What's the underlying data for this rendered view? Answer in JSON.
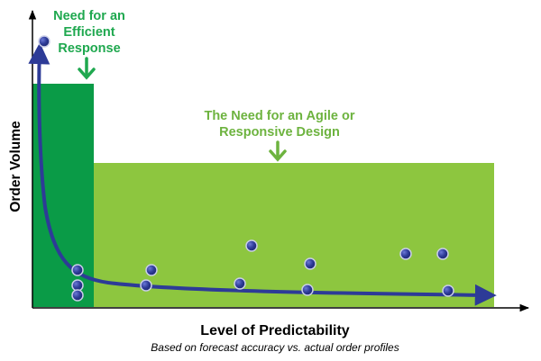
{
  "diagram": {
    "callout_efficient": {
      "lines": [
        "Need for an",
        "Efficient",
        "Response"
      ],
      "color": "#1fa84f"
    },
    "callout_agile": {
      "lines": [
        "The Need for an Agile or",
        "Responsive Design"
      ],
      "color": "#6db33f"
    },
    "axis": {
      "y_label": "Order Volume",
      "x_label": "Level of Predictability",
      "x_caption": "Based on forecast accuracy vs. actual order profiles"
    },
    "colors": {
      "efficient_region": "#0a9b47",
      "agile_region": "#8dc63f",
      "curve": "#2d3b97",
      "dot": "#2d3b97"
    }
  }
}
